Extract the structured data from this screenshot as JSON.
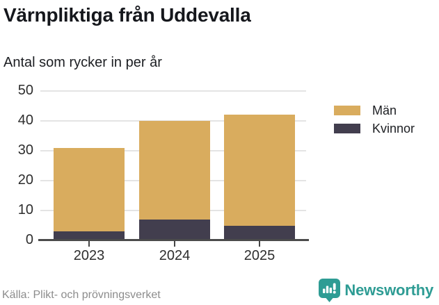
{
  "title": "Värnpliktiga från Uddevalla",
  "subtitle": "Antal som rycker in per år",
  "chart_data": {
    "type": "bar",
    "stacked": true,
    "title": "Värnpliktiga från Uddevalla",
    "subtitle": "Antal som rycker in per år",
    "categories": [
      "2023",
      "2024",
      "2025"
    ],
    "series": [
      {
        "name": "Kvinnor",
        "color": "#423e4e",
        "values": [
          3,
          7,
          5
        ]
      },
      {
        "name": "Män",
        "color": "#d9ac5e",
        "values": [
          28,
          33,
          37
        ]
      }
    ],
    "totals": [
      31,
      40,
      42
    ],
    "xlabel": "",
    "ylabel": "",
    "ylim": [
      0,
      50
    ],
    "yticks": [
      0,
      10,
      20,
      30,
      40,
      50
    ],
    "grid": "horizontal",
    "legend_position": "right"
  },
  "legend": {
    "items": [
      {
        "label": "Män",
        "color": "#d9ac5e"
      },
      {
        "label": "Kvinnor",
        "color": "#423e4e"
      }
    ]
  },
  "footer": {
    "source": "Källa: Plikt- och prövningsverket",
    "brand": "Newsworthy",
    "brand_color": "#2e9c94",
    "brand_icon": "bar-chart-balloon-icon"
  }
}
